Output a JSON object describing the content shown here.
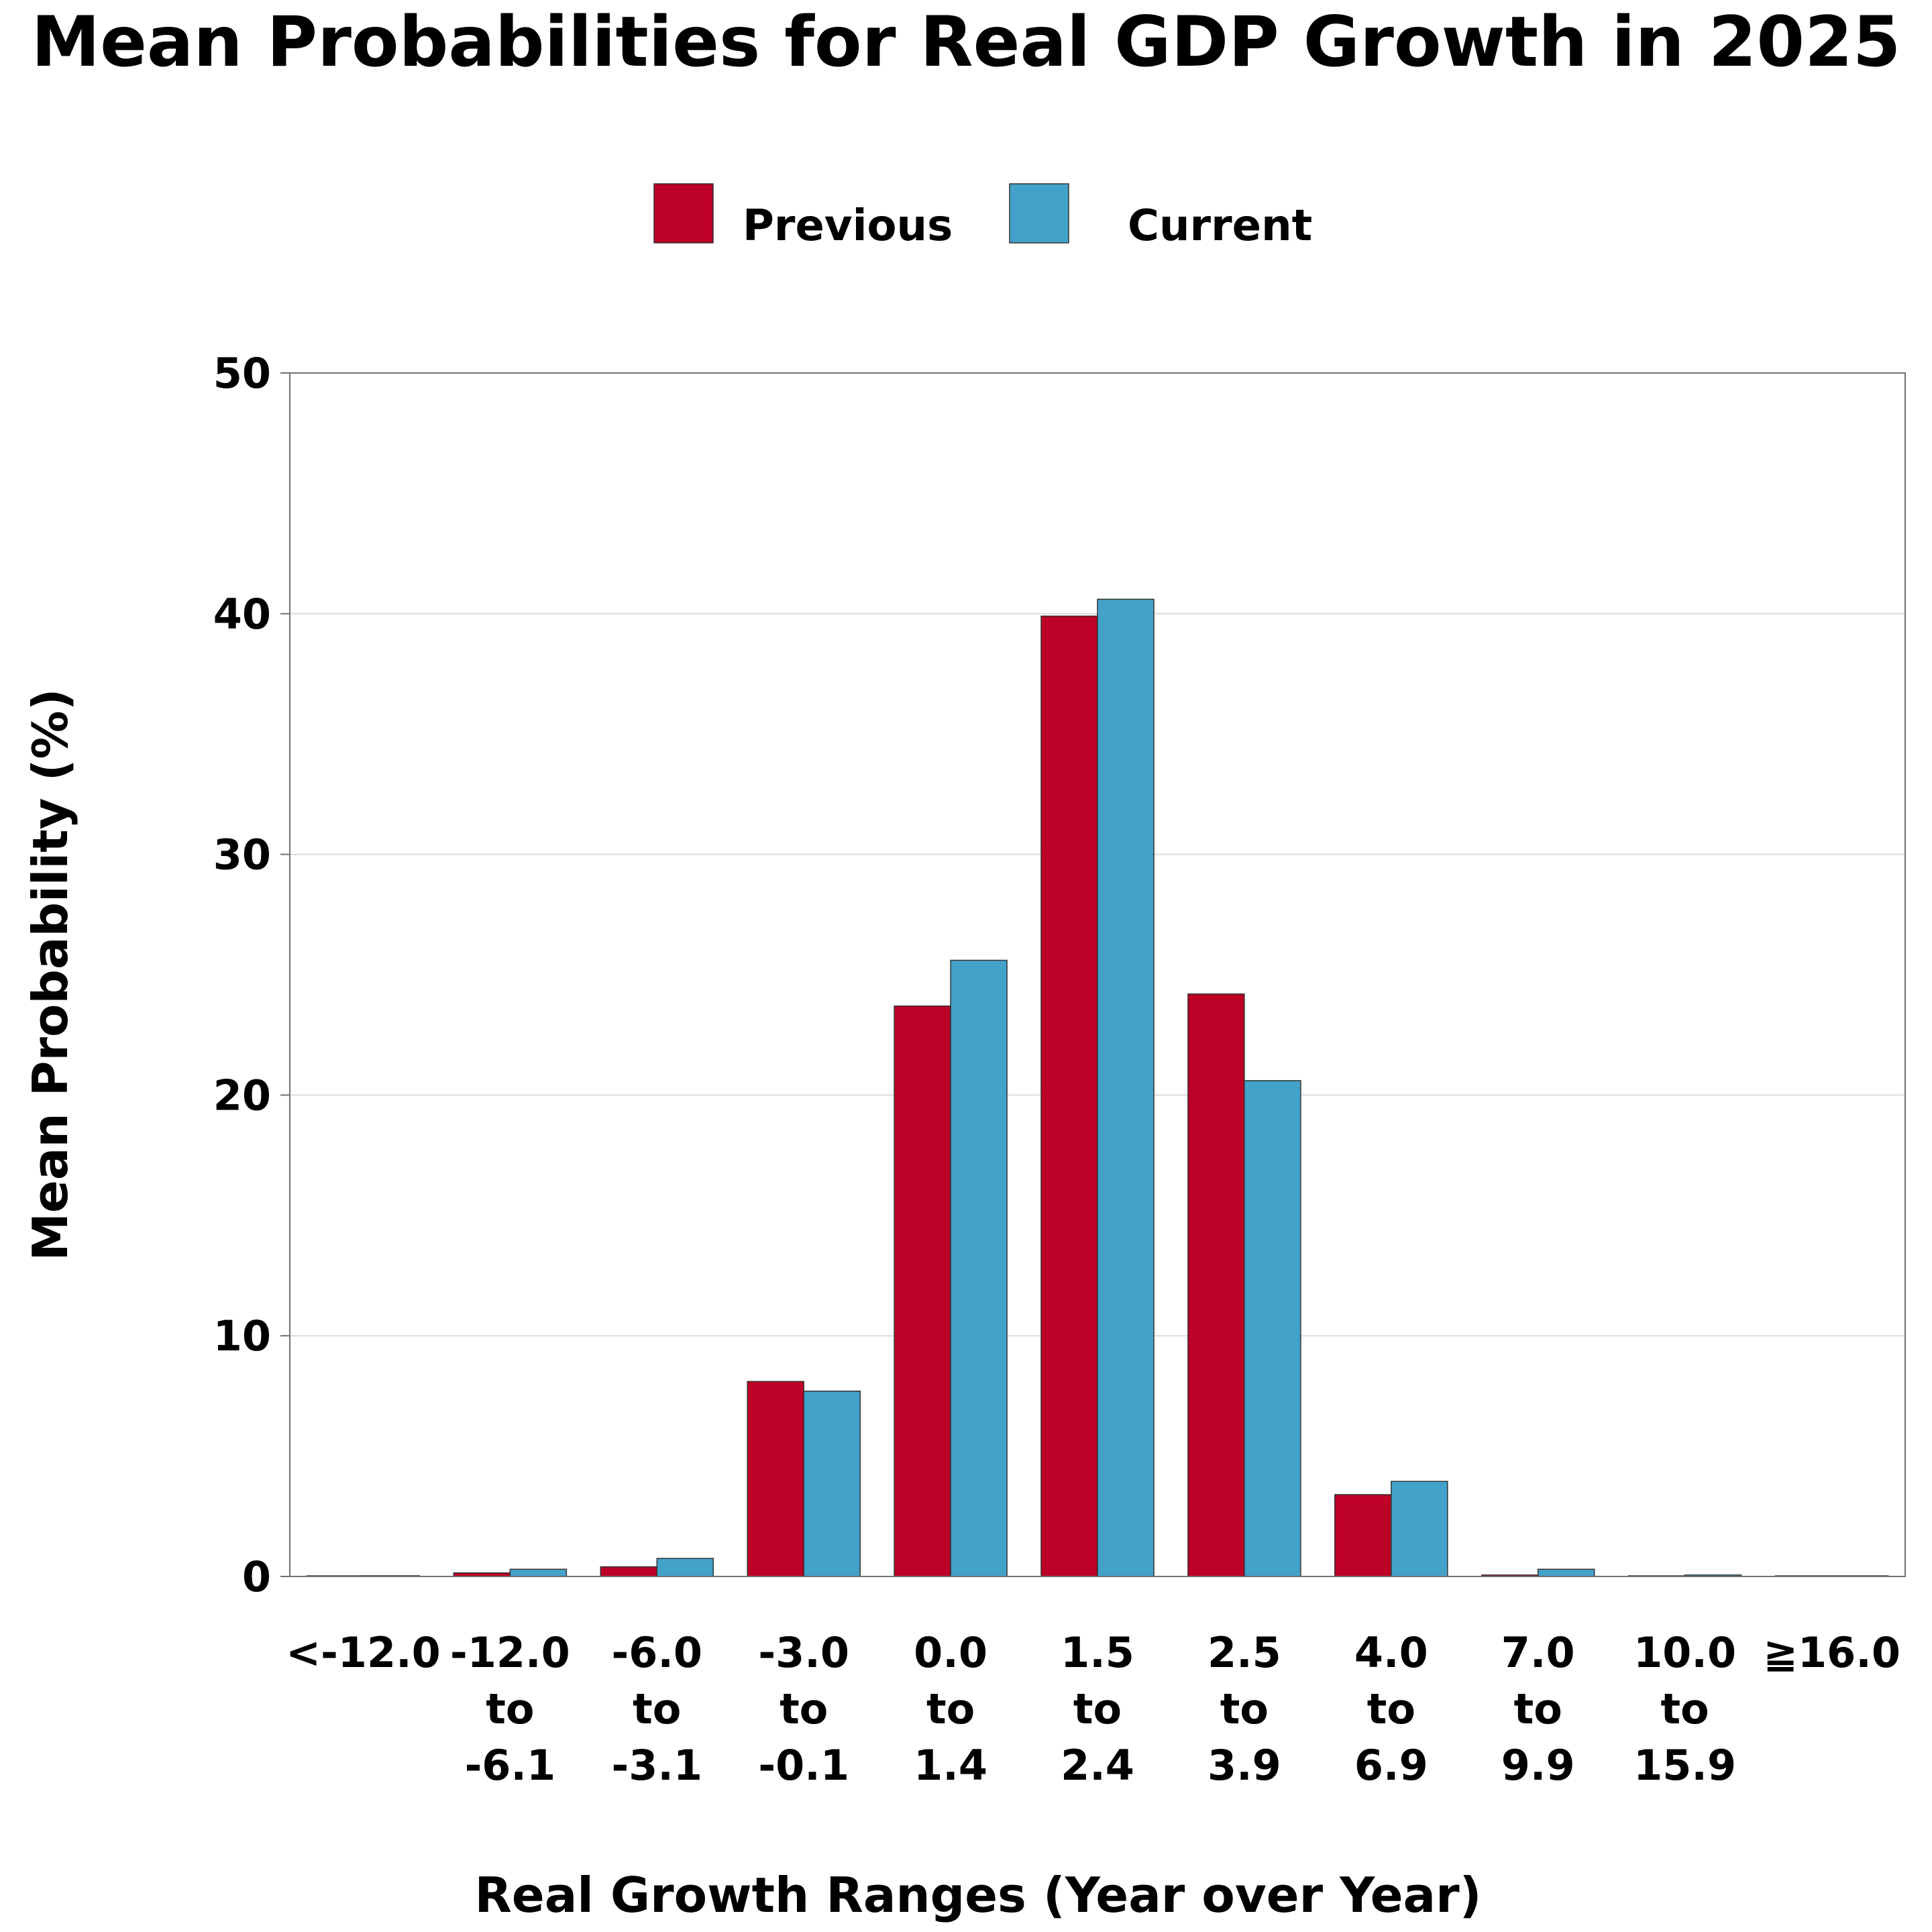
{
  "chart_data": {
    "type": "bar",
    "title": "Mean Probabilities for Real GDP Growth in 2025",
    "xlabel": "Real Growth Ranges (Year over Year)",
    "ylabel": "Mean Probability (%)",
    "ylim": [
      0,
      50
    ],
    "yticks": [
      "0",
      "10",
      "20",
      "30",
      "40",
      "50"
    ],
    "grid": "horizontal",
    "legend_position": "top",
    "categories": [
      [
        "<-12.0"
      ],
      [
        "-12.0",
        "to",
        "-6.1"
      ],
      [
        "-6.0",
        "to",
        "-3.1"
      ],
      [
        "-3.0",
        "to",
        "-0.1"
      ],
      [
        "0.0",
        "to",
        "1.4"
      ],
      [
        "1.5",
        "to",
        "2.4"
      ],
      [
        "2.5",
        "to",
        "3.9"
      ],
      [
        "4.0",
        "to",
        "6.9"
      ],
      [
        "7.0",
        "to",
        "9.9"
      ],
      [
        "10.0",
        "to",
        "15.9"
      ],
      [
        "≧16.0"
      ]
    ],
    "series": [
      {
        "name": "Previous",
        "color": "#bd0026",
        "values": [
          0.02,
          0.15,
          0.4,
          8.1,
          23.7,
          39.9,
          24.2,
          3.4,
          0.06,
          0.02,
          0.01
        ]
      },
      {
        "name": "Current",
        "color": "#43a2ca",
        "values": [
          0.03,
          0.3,
          0.75,
          7.7,
          25.6,
          40.6,
          20.6,
          3.95,
          0.3,
          0.06,
          0.02
        ]
      }
    ]
  }
}
